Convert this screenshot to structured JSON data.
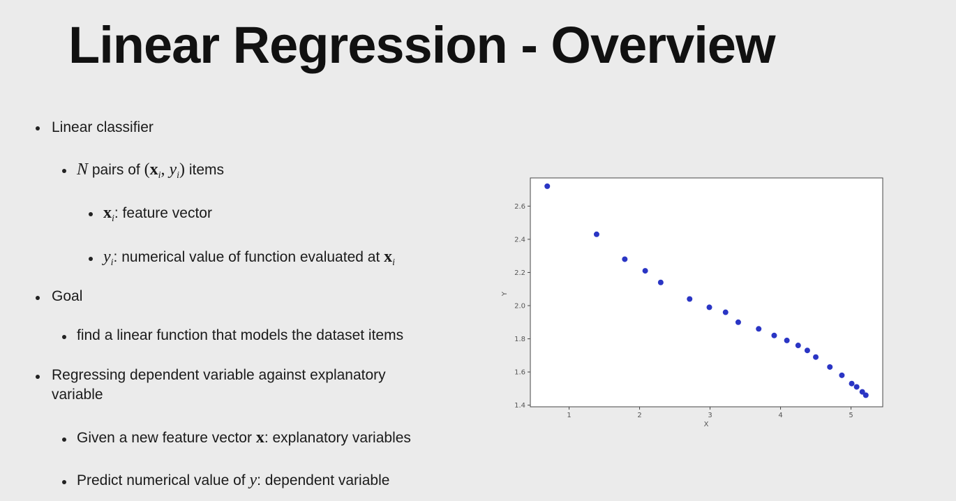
{
  "slide": {
    "title": "Linear Regression - Overview"
  },
  "bullets": {
    "b1": "Linear classifier",
    "b1_1_suffix": " pairs of ",
    "b1_1_items": " items",
    "b1_1_N": "N",
    "b1_1_x": "x",
    "b1_1_y": "y",
    "b1_1_sub": "i",
    "b1_1_1_x": "x",
    "b1_1_1_sub": "i",
    "b1_1_1_text": ": feature vector",
    "b1_1_2_y": "y",
    "b1_1_2_sub": "i",
    "b1_1_2_text": ": numerical value of function evaluated at ",
    "b1_1_2_x": "x",
    "b1_1_2_xsub": "i",
    "b2": "Goal",
    "b2_1": "find a linear function that models the dataset items",
    "b3_line1": "Regressing dependent variable against explanatory",
    "b3_line2": "variable",
    "b3_1_pre": "Given a new feature vector ",
    "b3_1_x": "x",
    "b3_1_post": ": explanatory variables",
    "b3_2_pre": "Predict numerical value of ",
    "b3_2_y": "y",
    "b3_2_post": ": dependent variable"
  },
  "chart_data": {
    "type": "scatter",
    "xlabel": "X",
    "ylabel": "Y",
    "xlim": [
      0.45,
      5.45
    ],
    "ylim": [
      1.39,
      2.77
    ],
    "xticks": [
      1,
      2,
      3,
      4,
      5
    ],
    "yticks": [
      1.4,
      1.6,
      1.8,
      2.0,
      2.2,
      2.4,
      2.6
    ],
    "yticklabels": [
      "1.4",
      "1.6",
      "1.8",
      "2.0",
      "2.2",
      "2.4",
      "2.6"
    ],
    "point_color": "#2a35c4",
    "grid": false,
    "x": [
      0.69,
      1.39,
      1.79,
      2.08,
      2.3,
      2.71,
      2.99,
      3.22,
      3.4,
      3.69,
      3.91,
      4.09,
      4.25,
      4.38,
      4.5,
      4.7,
      4.87,
      5.01,
      5.08,
      5.16,
      5.21
    ],
    "y": [
      2.72,
      2.43,
      2.28,
      2.21,
      2.14,
      2.04,
      1.99,
      1.96,
      1.9,
      1.86,
      1.82,
      1.79,
      1.76,
      1.73,
      1.69,
      1.63,
      1.58,
      1.53,
      1.51,
      1.48,
      1.46
    ]
  }
}
